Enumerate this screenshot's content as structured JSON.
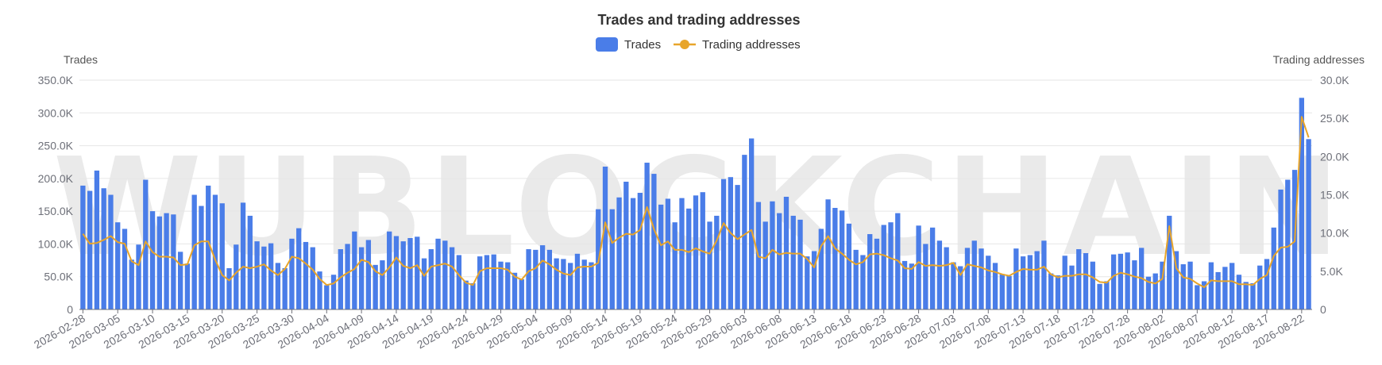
{
  "watermark": "WUBLOCKCHAIN",
  "chart_data": {
    "type": "bar",
    "title": "Trades and trading addresses",
    "legend": {
      "position": "top-center",
      "items": [
        "Trades",
        "Trading addresses"
      ]
    },
    "ylabel_left": "Trades",
    "ylabel_right": "Trading addresses",
    "ylim_left": [
      0,
      350000
    ],
    "ylim_right": [
      0,
      30000
    ],
    "yticks_left": [
      "0",
      "50.0K",
      "100.0K",
      "150.0K",
      "200.0K",
      "250.0K",
      "300.0K",
      "350.0K"
    ],
    "yticks_right": [
      "0",
      "5.0K",
      "10.0K",
      "15.0K",
      "20.0K",
      "25.0K",
      "30.0K"
    ],
    "x_start": "2026-02-28",
    "x_end": "2026-08-24",
    "x_tick_labels": [
      "2026-02-28",
      "2026-03-05",
      "2026-03-10",
      "2026-03-15",
      "2026-03-20",
      "2026-03-25",
      "2026-03-30",
      "2026-04-04",
      "2026-04-09",
      "2026-04-14",
      "2026-04-19",
      "2026-04-24",
      "2026-04-29",
      "2026-05-04",
      "2026-05-09",
      "2026-05-14",
      "2026-05-19",
      "2026-05-24",
      "2026-05-29",
      "2026-06-03",
      "2026-06-08",
      "2026-06-13",
      "2026-06-18",
      "2026-06-23",
      "2026-06-28",
      "2026-07-03",
      "2026-07-08",
      "2026-07-13",
      "2026-07-18",
      "2026-07-23",
      "2026-07-28",
      "2026-08-02",
      "2026-08-07",
      "2026-08-12",
      "2026-08-17",
      "2026-08-22"
    ],
    "colors": {
      "bars": "#4a7de8",
      "line": "#e8a52a",
      "grid": "#e6e6e6",
      "axis": "#6e7079"
    },
    "grid": true,
    "series": [
      {
        "name": "Trades",
        "type": "bar",
        "axis": "left",
        "values": [
          189000,
          181000,
          212000,
          185000,
          175000,
          133000,
          123000,
          76000,
          99000,
          198000,
          150000,
          142000,
          147000,
          145000,
          88000,
          70000,
          175000,
          158000,
          189000,
          175000,
          162000,
          63000,
          99000,
          163000,
          143000,
          104000,
          96000,
          101000,
          71000,
          63000,
          108000,
          124000,
          103000,
          95000,
          58000,
          37000,
          53000,
          92000,
          100000,
          119000,
          95000,
          106000,
          68000,
          75000,
          119000,
          112000,
          104000,
          109000,
          111000,
          78000,
          92000,
          108000,
          105000,
          95000,
          83000,
          44000,
          40000,
          81000,
          83000,
          84000,
          73000,
          72000,
          56000,
          46000,
          92000,
          91000,
          98000,
          91000,
          78000,
          77000,
          71000,
          85000,
          76000,
          72000,
          153000,
          218000,
          153000,
          171000,
          195000,
          170000,
          178000,
          224000,
          207000,
          160000,
          169000,
          133000,
          170000,
          154000,
          174000,
          179000,
          134000,
          143000,
          199000,
          202000,
          190000,
          236000,
          261000,
          164000,
          134000,
          165000,
          147000,
          172000,
          143000,
          137000,
          81000,
          89000,
          123000,
          168000,
          155000,
          151000,
          131000,
          91000,
          83000,
          115000,
          108000,
          129000,
          133000,
          147000,
          74000,
          70000,
          128000,
          100000,
          125000,
          105000,
          95000,
          72000,
          66000,
          94000,
          105000,
          93000,
          82000,
          71000,
          54000,
          51000,
          93000,
          81000,
          83000,
          89000,
          105000,
          55000,
          52000,
          82000,
          67000,
          92000,
          86000,
          73000,
          39000,
          43000,
          84000,
          85000,
          87000,
          75000,
          94000,
          50000,
          55000,
          73000,
          143000,
          89000,
          69000,
          73000,
          37000,
          43000,
          72000,
          57000,
          65000,
          71000,
          53000,
          42000,
          40000,
          67000,
          77000,
          125000,
          183000,
          198000,
          213000,
          323000,
          260000
        ]
      },
      {
        "name": "Trading addresses",
        "type": "line",
        "axis": "right",
        "values": [
          9900,
          8600,
          8700,
          9100,
          9600,
          8800,
          8600,
          6300,
          5800,
          8900,
          7500,
          6900,
          6900,
          6800,
          5800,
          5900,
          8400,
          8900,
          8900,
          6500,
          4500,
          3800,
          4800,
          5600,
          5400,
          5600,
          5900,
          5100,
          4500,
          5300,
          6900,
          6700,
          6000,
          5200,
          4000,
          3200,
          3400,
          4200,
          4800,
          5300,
          6500,
          6200,
          5000,
          4500,
          5500,
          6800,
          5700,
          5400,
          5800,
          4400,
          5600,
          5800,
          6000,
          5600,
          4500,
          3500,
          3200,
          5000,
          5400,
          5400,
          5400,
          5200,
          4300,
          3900,
          5000,
          5400,
          6400,
          5900,
          5200,
          4700,
          4500,
          5500,
          5600,
          5600,
          6100,
          11400,
          8700,
          9400,
          9900,
          9800,
          10400,
          13400,
          10500,
          8400,
          8900,
          7800,
          7800,
          7500,
          8000,
          7600,
          7300,
          9000,
          11300,
          10000,
          9200,
          9800,
          10400,
          6900,
          6700,
          7800,
          7200,
          7400,
          7300,
          7300,
          6600,
          5500,
          8300,
          9600,
          8000,
          7300,
          6500,
          5900,
          6200,
          7200,
          7300,
          7100,
          6700,
          6400,
          5400,
          5300,
          6200,
          5700,
          5800,
          5700,
          5800,
          6100,
          4500,
          5900,
          5700,
          5500,
          5100,
          4900,
          4600,
          4400,
          4900,
          5300,
          5200,
          5200,
          5600,
          4600,
          4200,
          4400,
          4400,
          4600,
          4600,
          4200,
          3600,
          3500,
          4400,
          4800,
          4600,
          4300,
          4100,
          3600,
          3400,
          4000,
          10900,
          5400,
          4200,
          4000,
          3400,
          2900,
          3800,
          3700,
          3700,
          3700,
          3300,
          3300,
          3200,
          4000,
          4500,
          7000,
          8100,
          8200,
          8900,
          25200,
          22500
        ]
      }
    ]
  }
}
